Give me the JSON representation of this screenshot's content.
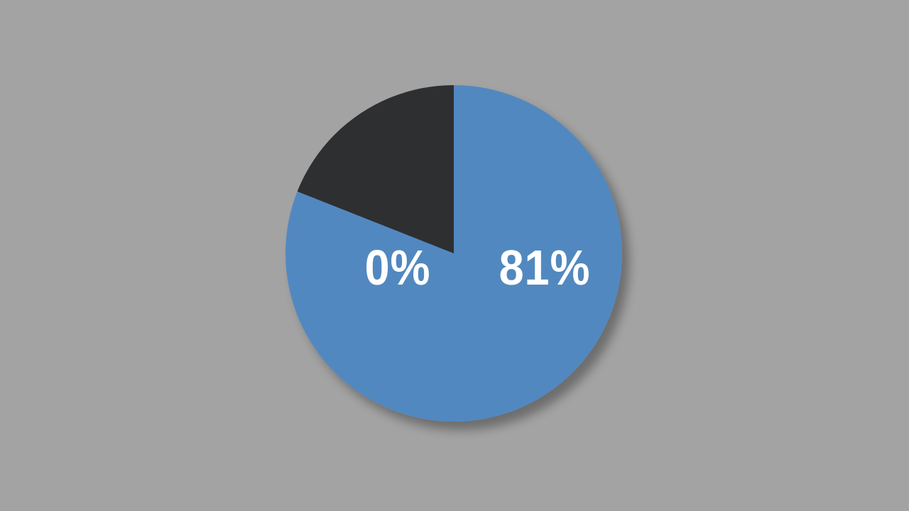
{
  "colors": {
    "background": "#a3a3a3",
    "slice_filled": "#5288c0",
    "slice_remainder": "#2e2f31",
    "label_text": "#ffffff",
    "shadow": "rgba(0,0,0,0.33)"
  },
  "chart_data": {
    "type": "pie",
    "title": "",
    "start_angle_deg": 0,
    "direction": "clockwise",
    "legend_position": "none",
    "slices": [
      {
        "name": "filled",
        "value": 81,
        "color": "#5288c0",
        "data_label": "81%"
      },
      {
        "name": "remainder",
        "value": 19,
        "color": "#2e2f31",
        "data_label": ""
      }
    ],
    "labels": {
      "left": "0%",
      "right": "81%"
    }
  }
}
